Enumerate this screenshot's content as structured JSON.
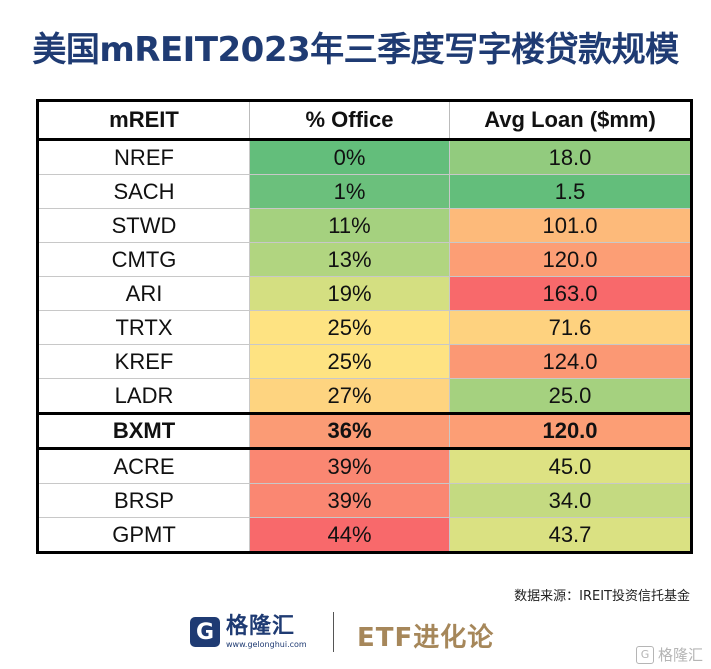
{
  "title": "美国mREIT2023年三季度写字楼贷款规模",
  "source": "数据来源：IREIT投资信托基金",
  "brand": {
    "name": "格隆汇",
    "url": "www.gelonghui.com",
    "column_name": "ETF进化论",
    "watermark": "格隆汇"
  },
  "chart_data": {
    "type": "table",
    "columns": [
      "mREIT",
      "% Office",
      "Avg Loan ($mm)"
    ],
    "rows": [
      {
        "name": "NREF",
        "office": "0%",
        "loan": "18.0",
        "office_color": "#63be7b",
        "loan_color": "#92cb7e"
      },
      {
        "name": "SACH",
        "office": "1%",
        "loan": "1.5",
        "office_color": "#6bc07c",
        "loan_color": "#63be7b"
      },
      {
        "name": "STWD",
        "office": "11%",
        "loan": "101.0",
        "office_color": "#a5d17f",
        "loan_color": "#fdba7a"
      },
      {
        "name": "CMTG",
        "office": "13%",
        "loan": "120.0",
        "office_color": "#b1d580",
        "loan_color": "#fc9e75"
      },
      {
        "name": "ARI",
        "office": "19%",
        "loan": "163.0",
        "office_color": "#d4df81",
        "loan_color": "#f8696b"
      },
      {
        "name": "TRTX",
        "office": "25%",
        "loan": "71.6",
        "office_color": "#fee382",
        "loan_color": "#fed27f"
      },
      {
        "name": "KREF",
        "office": "25%",
        "loan": "124.0",
        "office_color": "#fee382",
        "loan_color": "#fb9874"
      },
      {
        "name": "LADR",
        "office": "27%",
        "loan": "25.0",
        "office_color": "#fed480",
        "loan_color": "#a5d17f"
      },
      {
        "name": "BXMT",
        "office": "36%",
        "loan": "120.0",
        "office_color": "#fb9b75",
        "loan_color": "#fc9e75",
        "highlight": true
      },
      {
        "name": "ACRE",
        "office": "39%",
        "loan": "45.0",
        "office_color": "#fa8772",
        "loan_color": "#dde283"
      },
      {
        "name": "BRSP",
        "office": "39%",
        "loan": "34.0",
        "office_color": "#fa8772",
        "loan_color": "#c4da81"
      },
      {
        "name": "GPMT",
        "office": "44%",
        "loan": "43.7",
        "office_color": "#f8696b",
        "loan_color": "#dae182"
      }
    ]
  }
}
